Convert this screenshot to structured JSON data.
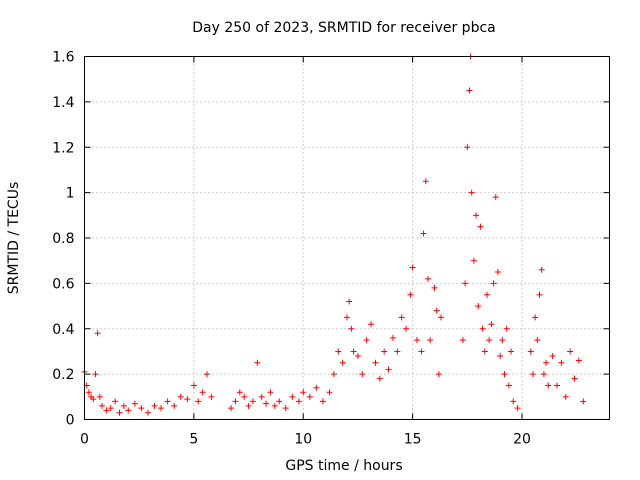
{
  "chart_data": {
    "type": "scatter",
    "title": "Day 250 of 2023, SRMTID for receiver pbca",
    "xlabel": "GPS time / hours",
    "ylabel": "SRMTID / TECUs",
    "xlim": [
      0,
      24
    ],
    "ylim": [
      0,
      1.6
    ],
    "xticks": [
      0,
      5,
      10,
      15,
      20
    ],
    "xtick_labels": [
      "0",
      "5",
      "10",
      "15",
      "20"
    ],
    "yticks": [
      0,
      0.2,
      0.4,
      0.6,
      0.8,
      1.0,
      1.2,
      1.4,
      1.6
    ],
    "ytick_labels": [
      "0",
      "0.2",
      "0.4",
      "0.6",
      "0.8",
      "1",
      "1.2",
      "1.4",
      "1.6"
    ],
    "grid": true,
    "marker": "+",
    "color": "#ff0000",
    "series": [
      {
        "name": "pbca",
        "x": [
          0.0,
          0.1,
          0.2,
          0.3,
          0.4,
          0.5,
          0.6,
          0.7,
          0.8,
          1.0,
          1.2,
          1.4,
          1.6,
          1.8,
          2.0,
          2.3,
          2.6,
          2.9,
          3.2,
          3.5,
          3.8,
          4.1,
          4.4,
          4.7,
          5.0,
          5.2,
          5.4,
          5.6,
          5.8,
          6.7,
          6.9,
          7.1,
          7.3,
          7.5,
          7.7,
          7.9,
          8.1,
          8.3,
          8.5,
          8.7,
          8.9,
          9.2,
          9.5,
          9.8,
          10.0,
          10.3,
          10.6,
          10.9,
          11.2,
          11.4,
          11.6,
          11.8,
          12.0,
          12.1,
          12.2,
          12.3,
          12.5,
          12.7,
          12.9,
          13.1,
          13.3,
          13.5,
          13.7,
          13.9,
          14.1,
          14.3,
          14.5,
          14.7,
          14.9,
          15.0,
          15.2,
          15.4,
          15.5,
          15.6,
          15.7,
          15.8,
          16.0,
          16.1,
          16.2,
          16.3,
          17.3,
          17.4,
          17.5,
          17.6,
          17.65,
          17.7,
          17.8,
          17.9,
          18.0,
          18.1,
          18.2,
          18.3,
          18.4,
          18.5,
          18.6,
          18.7,
          18.8,
          18.9,
          19.0,
          19.1,
          19.2,
          19.3,
          19.4,
          19.5,
          19.6,
          19.8,
          20.4,
          20.5,
          20.6,
          20.7,
          20.8,
          20.9,
          21.0,
          21.1,
          21.2,
          21.4,
          21.6,
          21.8,
          22.0,
          22.2,
          22.4,
          22.6,
          22.8
        ],
        "y": [
          0.21,
          0.15,
          0.12,
          0.1,
          0.09,
          0.2,
          0.38,
          0.1,
          0.06,
          0.04,
          0.05,
          0.08,
          0.03,
          0.06,
          0.04,
          0.07,
          0.05,
          0.03,
          0.06,
          0.05,
          0.08,
          0.06,
          0.1,
          0.09,
          0.15,
          0.08,
          0.12,
          0.2,
          0.1,
          0.05,
          0.08,
          0.12,
          0.1,
          0.06,
          0.08,
          0.25,
          0.1,
          0.07,
          0.12,
          0.06,
          0.08,
          0.05,
          0.1,
          0.08,
          0.12,
          0.1,
          0.14,
          0.08,
          0.12,
          0.2,
          0.3,
          0.25,
          0.45,
          0.52,
          0.4,
          0.3,
          0.28,
          0.2,
          0.35,
          0.42,
          0.25,
          0.18,
          0.3,
          0.22,
          0.36,
          0.3,
          0.45,
          0.4,
          0.55,
          0.67,
          0.35,
          0.3,
          0.82,
          1.05,
          0.62,
          0.35,
          0.58,
          0.48,
          0.2,
          0.45,
          0.35,
          0.6,
          1.2,
          1.45,
          1.6,
          1.0,
          0.7,
          0.9,
          0.5,
          0.85,
          0.4,
          0.3,
          0.55,
          0.35,
          0.42,
          0.6,
          0.98,
          0.65,
          0.28,
          0.35,
          0.2,
          0.4,
          0.15,
          0.3,
          0.08,
          0.05,
          0.3,
          0.2,
          0.45,
          0.35,
          0.55,
          0.66,
          0.2,
          0.25,
          0.15,
          0.28,
          0.15,
          0.25,
          0.1,
          0.3,
          0.18,
          0.26,
          0.08
        ]
      }
    ]
  }
}
